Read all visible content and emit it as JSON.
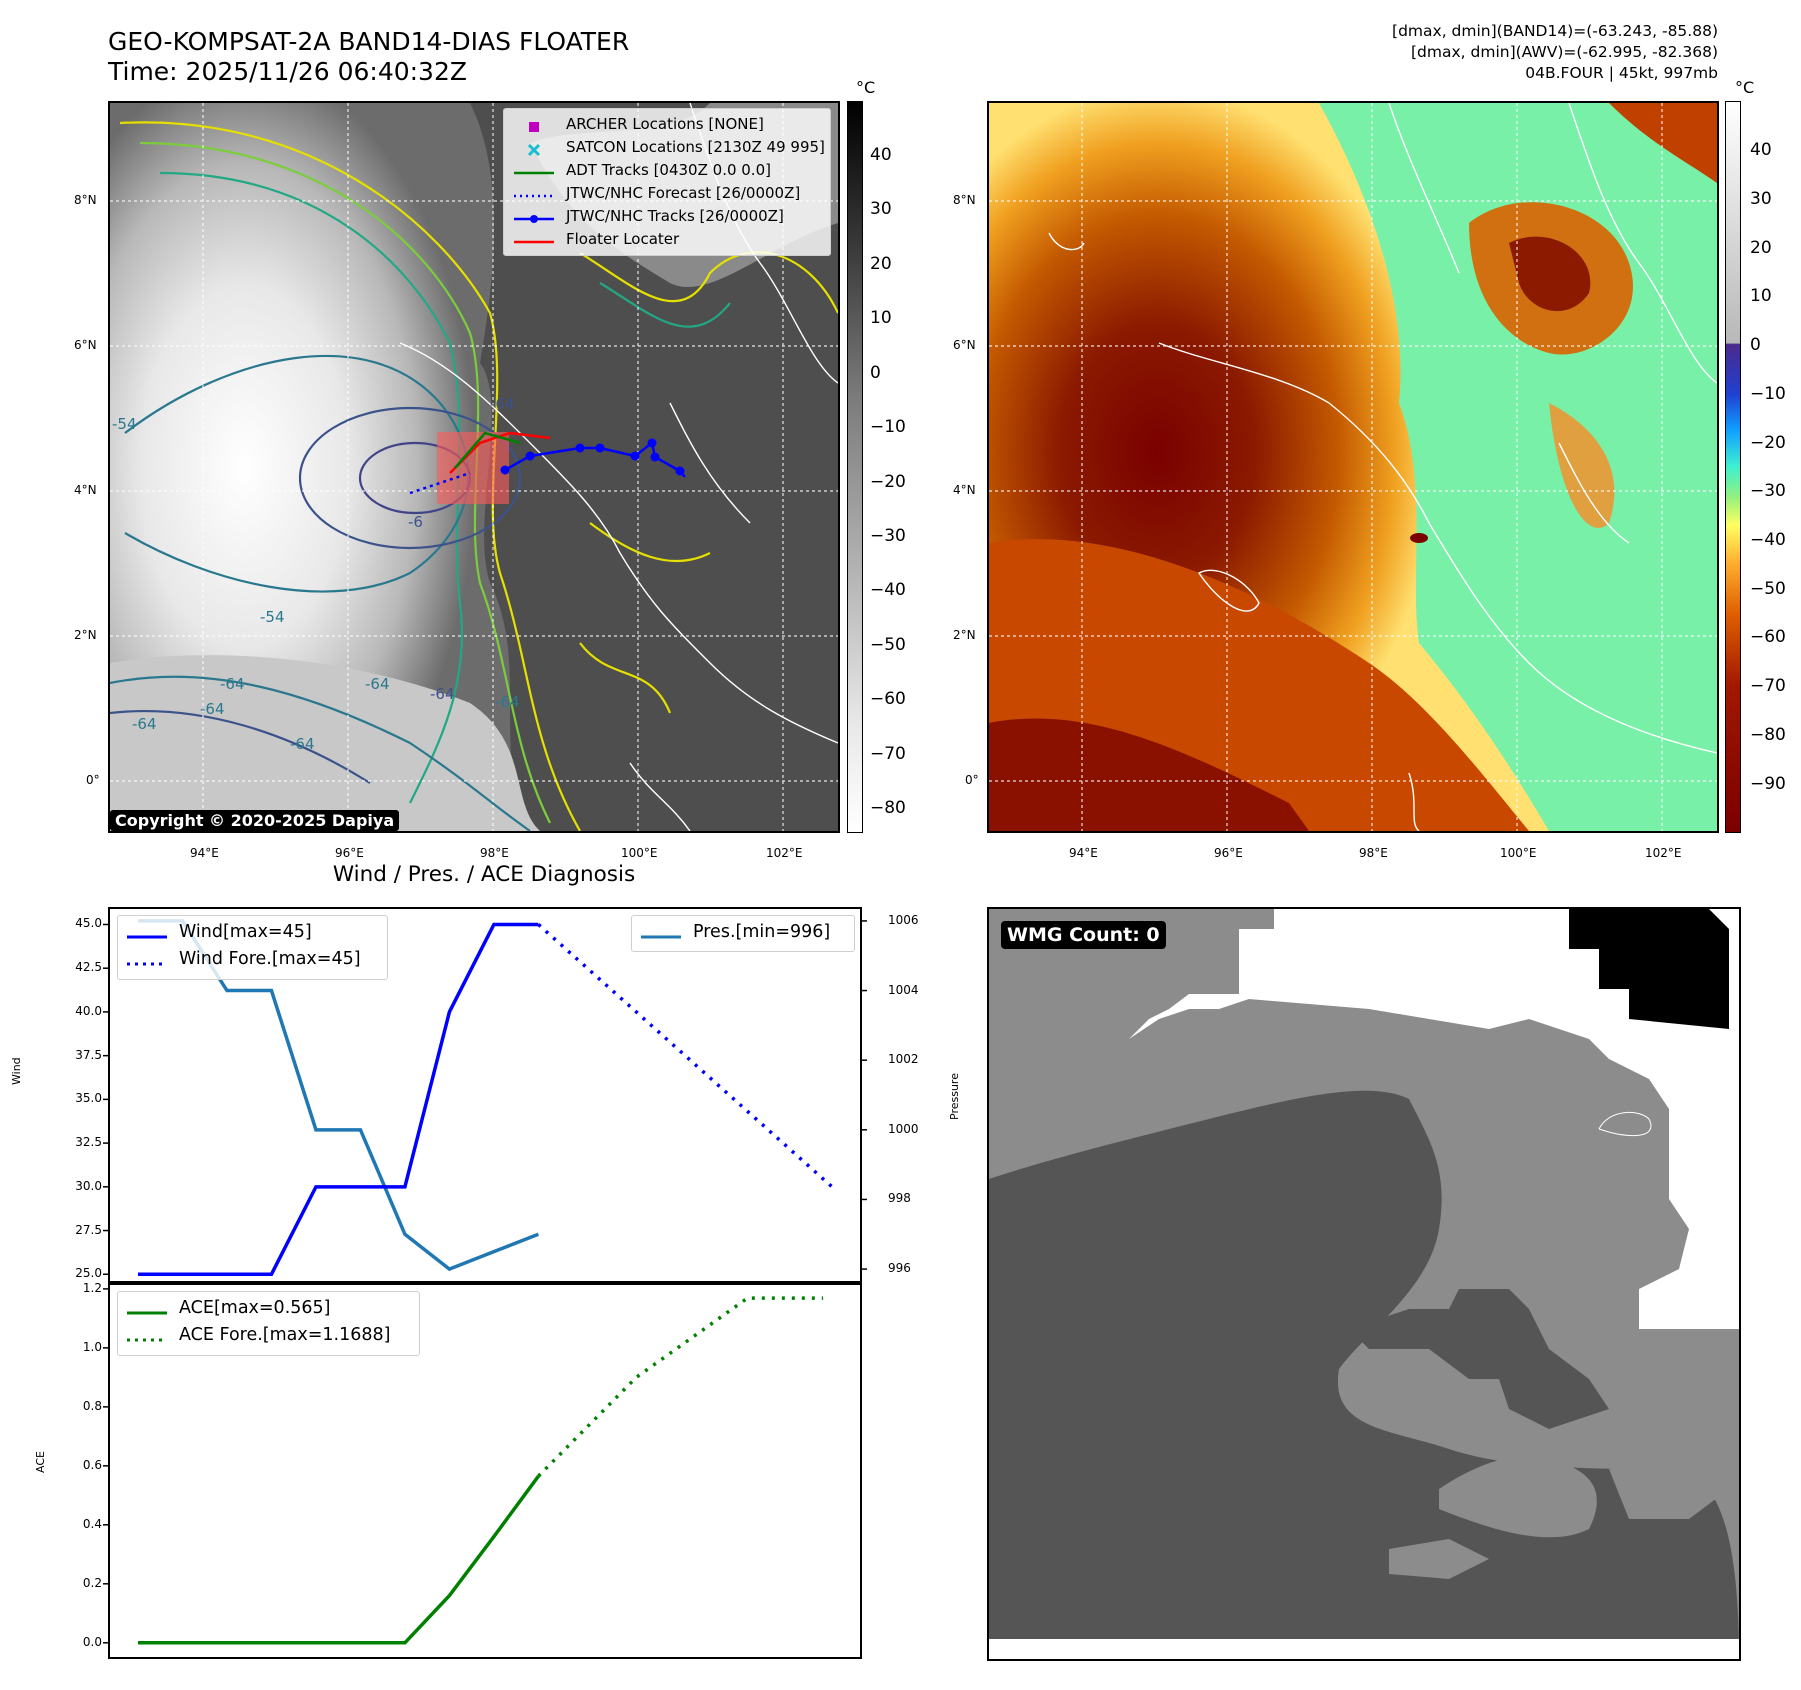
{
  "header": {
    "title_line1": "GEO-KOMPSAT-2A BAND14-DIAS FLOATER",
    "title_line2": "Time: 2025/11/26 06:40:32Z",
    "info_line1": "[dmax, dmin](BAND14)=(-63.243, -85.88)",
    "info_line2": "[dmax, dmin](AWV)=(-62.995, -82.368)",
    "info_line3": "04B.FOUR | 45kt, 997mb"
  },
  "map": {
    "lat_labels": [
      "8°N",
      "6°N",
      "4°N",
      "2°N",
      "0°"
    ],
    "lon_labels": [
      "94°E",
      "96°E",
      "98°E",
      "100°E",
      "102°E"
    ],
    "copyright": "Copyright © 2020-2025 Dapiya",
    "legend": [
      {
        "label": "ARCHER Locations [NONE]",
        "color": "#c000c0",
        "icon": "square-marker"
      },
      {
        "label": "SATCON Locations [2130Z 49 995]",
        "color": "#17becf",
        "icon": "x-marker"
      },
      {
        "label": "ADT Tracks [0430Z 0.0 0.0]",
        "color": "#008000",
        "icon": "solid-line"
      },
      {
        "label": "JTWC/NHC Forecast [26/0000Z]",
        "color": "#0000ff",
        "icon": "dotted-line"
      },
      {
        "label": "JTWC/NHC Tracks [26/0000Z]",
        "color": "#0000ff",
        "icon": "line-with-dots"
      },
      {
        "label": "Floater Locater",
        "color": "#ff0000",
        "icon": "solid-line"
      }
    ],
    "contour_labels": [
      "-54",
      "-64",
      "-64",
      "-64",
      "-64",
      "-54",
      "-64",
      "-64",
      "-64",
      "-64",
      "-6"
    ]
  },
  "colorbar_left": {
    "unit": "°C",
    "ticks": [
      "40",
      "30",
      "20",
      "10",
      "0",
      "−10",
      "−20",
      "−30",
      "−40",
      "−50",
      "−60",
      "−70",
      "−80"
    ]
  },
  "colorbar_right": {
    "unit": "°C",
    "ticks": [
      "40",
      "30",
      "20",
      "10",
      "0",
      "−10",
      "−20",
      "−30",
      "−40",
      "−50",
      "−60",
      "−70",
      "−80",
      "−90"
    ]
  },
  "wmg": {
    "label": "WMG Count: 0"
  },
  "chart_data": [
    {
      "type": "line",
      "title": "Wind / Pres. / ACE Diagnosis",
      "ylabel": "Wind",
      "y2label": "Pressure",
      "ylim": [
        24.5,
        46
      ],
      "y2lim": [
        995.6,
        1006.4
      ],
      "yticks": [
        "45.0",
        "42.5",
        "40.0",
        "37.5",
        "35.0",
        "32.5",
        "30.0",
        "27.5",
        "25.0"
      ],
      "y2ticks": [
        "1006",
        "1004",
        "1002",
        "1000",
        "998",
        "996"
      ],
      "x": [
        0,
        1,
        2,
        3,
        4,
        5,
        6,
        7,
        8,
        9,
        10,
        11,
        12,
        13,
        14,
        15
      ],
      "series": [
        {
          "name": "Wind[max=45]",
          "color": "#0000ff",
          "style": "solid",
          "axis": "left",
          "x": [
            0,
            1,
            2,
            3,
            4,
            5,
            6,
            7,
            8,
            9
          ],
          "values": [
            25,
            25,
            25,
            25,
            30,
            30,
            30,
            40,
            45,
            45
          ]
        },
        {
          "name": "Wind Fore.[max=45]",
          "color": "#0000ff",
          "style": "dotted",
          "axis": "left",
          "x": [
            9,
            15.6
          ],
          "values": [
            45,
            30
          ]
        },
        {
          "name": "Pres.[min=996]",
          "color": "#1f77b4",
          "style": "solid",
          "axis": "right",
          "x": [
            0,
            1,
            2,
            3,
            4,
            5,
            6,
            7,
            8,
            9
          ],
          "values": [
            1006,
            1006,
            1004,
            1004,
            1000,
            1000,
            997,
            996,
            996.5,
            997
          ]
        }
      ]
    },
    {
      "type": "line",
      "ylabel": "ACE",
      "ylim": [
        -0.055,
        1.22
      ],
      "yticks": [
        "1.2",
        "1.0",
        "0.8",
        "0.6",
        "0.4",
        "0.2",
        "0.0"
      ],
      "series": [
        {
          "name": "ACE[max=0.565]",
          "color": "#008000",
          "style": "solid",
          "x": [
            0,
            1,
            2,
            3,
            4,
            5,
            6,
            7,
            8,
            9
          ],
          "values": [
            0,
            0,
            0,
            0,
            0,
            0,
            0,
            0.16,
            0.36,
            0.565
          ]
        },
        {
          "name": "ACE Fore.[max=1.1688]",
          "color": "#008000",
          "style": "dotted",
          "x": [
            9,
            11.2,
            13.7,
            15.4
          ],
          "values": [
            0.565,
            0.9,
            1.1688,
            1.1688
          ]
        }
      ]
    }
  ]
}
